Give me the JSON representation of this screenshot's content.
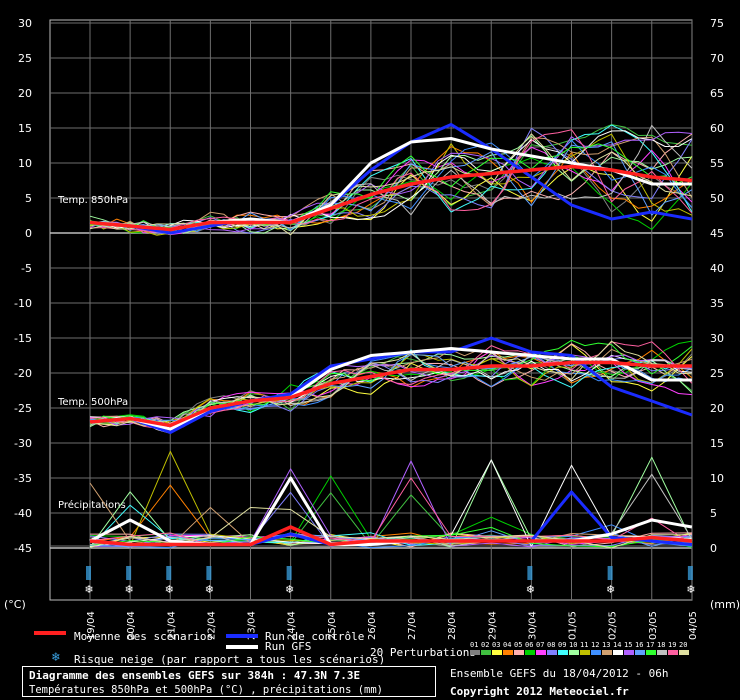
{
  "left_axis": {
    "unit": "(°C)",
    "ticks": [
      "30",
      "25",
      "20",
      "15",
      "10",
      "5",
      "0",
      "-5",
      "-10",
      "-15",
      "-20",
      "-25",
      "-30",
      "-35",
      "-40",
      "-45"
    ]
  },
  "right_axis": {
    "unit": "(mm)",
    "ticks": [
      "75",
      "70",
      "65",
      "60",
      "55",
      "50",
      "45",
      "40",
      "35",
      "30",
      "25",
      "20",
      "15",
      "10",
      "5",
      "0"
    ]
  },
  "dates": [
    "19/04",
    "20/04",
    "21/04",
    "22/04",
    "23/04",
    "24/04",
    "25/04",
    "26/04",
    "27/04",
    "28/04",
    "29/04",
    "30/04",
    "01/05",
    "02/05",
    "03/05",
    "04/05"
  ],
  "section_labels": {
    "t850": "Temp. 850hPa",
    "t500": "Temp. 500hPa",
    "precip": "Précipitations"
  },
  "legend": {
    "mean": "Moyenne des scénarios",
    "control": "Run de contrôle",
    "gfs": "Run GFS",
    "snow": "Risque neige (par rapport a tous les scénarios)",
    "perturbations": "20 Perturbations",
    "perturbation_numbers": [
      "01",
      "02",
      "03",
      "04",
      "05",
      "06",
      "07",
      "08",
      "09",
      "10",
      "11",
      "12",
      "13",
      "14",
      "15",
      "16",
      "17",
      "18",
      "19",
      "20"
    ]
  },
  "footer": {
    "title": "Diagramme des ensembles GEFS sur 384h : 47.3N 7.3E",
    "subtitle": "Températures 850hPa et 500hPa (°C) , précipitations (mm)",
    "run": "Ensemble GEFS du 18/04/2012 - 06h",
    "copyright": "Copyright 2012 Meteociel.fr"
  },
  "colors": {
    "mean": "#ff2020",
    "control": "#1a2cff",
    "gfs": "#ffffff",
    "snow": "#3aa0e0",
    "grid": "#6e6e6e",
    "perturbations": [
      "#808080",
      "#40c040",
      "#ffff40",
      "#ff8000",
      "#ffb0b0",
      "#00d000",
      "#ff40ff",
      "#8080ff",
      "#40ffff",
      "#a0ffa0",
      "#c0c000",
      "#4090ff",
      "#d0a070",
      "#ffffff",
      "#b060ff",
      "#60a0ff",
      "#30ff30",
      "#c0c0c0",
      "#ff60a0",
      "#e0e0a0"
    ]
  },
  "chart_data": {
    "type": "line",
    "x": [
      "19/04",
      "20/04",
      "21/04",
      "22/04",
      "23/04",
      "24/04",
      "25/04",
      "26/04",
      "27/04",
      "28/04",
      "29/04",
      "30/04",
      "01/05",
      "02/05",
      "03/05",
      "04/05"
    ],
    "ylabel_left": "(°C)",
    "ylabel_right": "(mm)",
    "ylim_left": [
      -45,
      30
    ],
    "ylim_right": [
      0,
      75
    ],
    "series": [
      {
        "name": "Temp. 850hPa - Moyenne des scénarios",
        "values": [
          1.5,
          1.0,
          0.5,
          1.5,
          1.5,
          1.5,
          3.5,
          5.5,
          7.0,
          8.0,
          8.5,
          9.0,
          9.5,
          9.0,
          8.0,
          7.5
        ]
      },
      {
        "name": "Temp. 850hPa - Run de contrôle",
        "values": [
          1.5,
          1.0,
          0.0,
          1.0,
          2.0,
          1.5,
          4.0,
          9.0,
          13.0,
          15.5,
          12.0,
          8.0,
          4.0,
          2.0,
          3.0,
          2.0
        ]
      },
      {
        "name": "Temp. 850hPa - Run GFS",
        "values": [
          1.5,
          1.0,
          0.5,
          1.5,
          2.0,
          1.5,
          4.0,
          10.0,
          13.0,
          13.5,
          12.0,
          11.0,
          10.0,
          9.0,
          7.0,
          7.0
        ]
      },
      {
        "name": "Temp. 500hPa - Moyenne des scénarios",
        "values": [
          -27.0,
          -26.5,
          -27.5,
          -25.0,
          -24.0,
          -23.5,
          -21.5,
          -20.5,
          -19.5,
          -19.5,
          -19.0,
          -19.0,
          -18.5,
          -18.5,
          -19.0,
          -19.0
        ]
      },
      {
        "name": "Temp. 500hPa - Run de contrôle",
        "values": [
          -27.0,
          -26.5,
          -28.5,
          -25.5,
          -24.0,
          -23.0,
          -19.0,
          -18.0,
          -17.0,
          -17.0,
          -15.0,
          -17.0,
          -17.5,
          -22.0,
          -24.0,
          -26.0
        ]
      },
      {
        "name": "Temp. 500hPa - Run GFS",
        "values": [
          -27.0,
          -26.5,
          -28.0,
          -25.0,
          -24.0,
          -23.5,
          -19.5,
          -17.5,
          -17.0,
          -16.5,
          -17.0,
          -17.5,
          -18.0,
          -18.0,
          -21.0,
          -21.0
        ]
      },
      {
        "name": "Précipitations (mm) - Moyenne des scénarios",
        "values": [
          1.0,
          0.5,
          0.5,
          0.5,
          0.5,
          3.0,
          0.5,
          1.0,
          1.0,
          1.0,
          1.0,
          1.0,
          1.0,
          1.0,
          1.5,
          1.0
        ]
      },
      {
        "name": "Précipitations (mm) - Run de contrôle",
        "values": [
          1.0,
          0.5,
          0.5,
          0.5,
          0.5,
          2.0,
          0.5,
          0.5,
          1.0,
          1.0,
          1.0,
          1.0,
          8.0,
          1.5,
          1.0,
          0.5
        ]
      },
      {
        "name": "Précipitations (mm) - Run GFS",
        "values": [
          1.0,
          4.0,
          1.0,
          0.5,
          0.5,
          10.0,
          0.5,
          0.5,
          1.0,
          1.0,
          1.0,
          1.0,
          1.0,
          2.0,
          4.0,
          3.0
        ]
      }
    ],
    "snow_risk_dates": [
      "19/04",
      "20/04",
      "21/04",
      "22/04",
      "24/04",
      "30/04",
      "02/05",
      "04/05"
    ],
    "legend_placement": "bottom",
    "grid": true
  }
}
